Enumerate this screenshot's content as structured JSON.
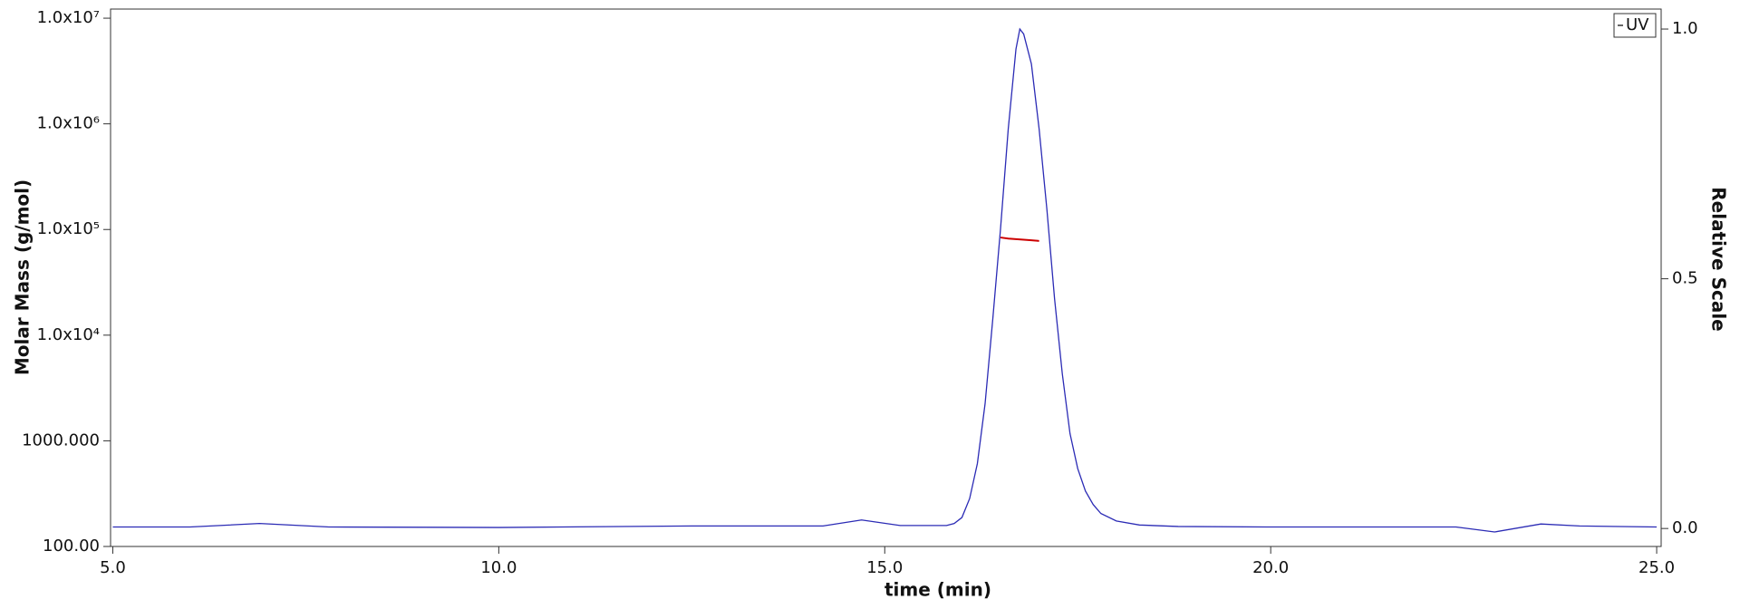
{
  "chart_data": {
    "type": "line",
    "x_label": "time (min)",
    "y_label": "Molar Mass (g/mol)",
    "y2_label": "Relative Scale",
    "log_y": true,
    "xlim": [
      4.971,
      25.058
    ],
    "xticks": [
      {
        "value": 5,
        "label": "5.0"
      },
      {
        "value": 10,
        "label": "10.0"
      },
      {
        "value": 15,
        "label": "15.0"
      },
      {
        "value": 20,
        "label": "20.0"
      },
      {
        "value": 25,
        "label": "25.0"
      }
    ],
    "ylim": [
      100,
      12200000
    ],
    "yticks": [
      {
        "value": 100,
        "label": "100.00"
      },
      {
        "value": 1000,
        "label": "1000.000"
      },
      {
        "value": 10000,
        "label": "1.0x10⁴"
      },
      {
        "value": 100000,
        "label": "1.0x10⁵"
      },
      {
        "value": 1000000,
        "label": "1.0x10⁶"
      },
      {
        "value": 10000000,
        "label": "1.0x10⁷"
      }
    ],
    "y2lim": [
      -0.036,
      1.04
    ],
    "y2ticks": [
      {
        "value": 0,
        "label": "0.0"
      },
      {
        "value": 0.5,
        "label": "0.5"
      },
      {
        "value": 1,
        "label": "1.0"
      }
    ],
    "legend": "top-right",
    "series": [
      {
        "name": "UV",
        "color": "#2b2bb5",
        "axis": "y2",
        "x": [
          5.0,
          6.0,
          6.9,
          7.8,
          10.0,
          12.5,
          14.2,
          14.7,
          15.2,
          15.8,
          15.9,
          16.0,
          16.1,
          16.2,
          16.3,
          16.4,
          16.5,
          16.6,
          16.7,
          16.75,
          16.8,
          16.9,
          17.0,
          17.1,
          17.2,
          17.3,
          17.4,
          17.5,
          17.6,
          17.7,
          17.8,
          18.0,
          18.3,
          18.8,
          20.0,
          22.4,
          22.9,
          23.5,
          24.0,
          25.0
        ],
        "values": [
          0.003,
          0.003,
          0.01,
          0.003,
          0.002,
          0.005,
          0.005,
          0.017,
          0.006,
          0.006,
          0.01,
          0.022,
          0.06,
          0.13,
          0.25,
          0.42,
          0.6,
          0.8,
          0.96,
          1.0,
          0.99,
          0.93,
          0.8,
          0.64,
          0.46,
          0.31,
          0.19,
          0.12,
          0.075,
          0.048,
          0.03,
          0.015,
          0.007,
          0.004,
          0.003,
          0.003,
          -0.007,
          0.009,
          0.005,
          0.003
        ]
      },
      {
        "color": "#cc0000",
        "axis": "y",
        "x": [
          16.5,
          16.6,
          16.7,
          16.8,
          16.9,
          17.0
        ],
        "values": [
          84000,
          82000,
          81000,
          80000,
          79000,
          78000
        ]
      }
    ]
  }
}
